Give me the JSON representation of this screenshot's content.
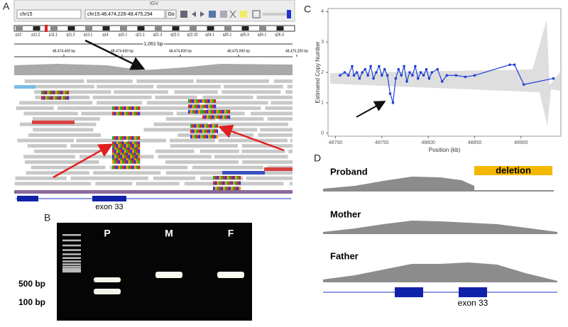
{
  "panels": {
    "A": {
      "label": "A",
      "igv": {
        "window_title": "IGV",
        "genome": "chr15",
        "locus": "chr15:48,474,226-48,475,294",
        "go": "Go",
        "bands": [
          "p12",
          "p11.2",
          "p11.1",
          "q11.2",
          "q13.1",
          "q14",
          "q15.1",
          "q21.1",
          "q21.3",
          "q22.2",
          "q22.32",
          "q24.1",
          "q25.1",
          "q25.3",
          "q26.1",
          "q26.3"
        ],
        "span": "1,061 bp",
        "positions": [
          "48,474,400 bp",
          "48,474,600 bp",
          "48,474,800 bp",
          "48,475,000 bp",
          "48,475,200 bp"
        ],
        "exon": "exon 33"
      }
    },
    "B": {
      "label": "B",
      "lanes": [
        "P",
        "M",
        "F"
      ],
      "ladder_labels": [
        "500 bp",
        "100 bp"
      ]
    },
    "D": {
      "label": "D",
      "tracks": [
        "Proband",
        "Mother",
        "Father"
      ],
      "deletion": "deletion",
      "exon": "exon 33"
    }
  },
  "chart_data": {
    "type": "line",
    "panel_label": "C",
    "x_label": "Position (kb)",
    "y_label": "Estimated Copy Number",
    "xlim": [
      48692,
      48943
    ],
    "xticks": [
      48700,
      48750,
      48800,
      48850,
      48900
    ],
    "ylim": [
      -0.1,
      4.1
    ],
    "yticks": [
      0,
      1,
      2,
      3,
      4
    ],
    "x": [
      48705,
      48710,
      48714,
      48718,
      48720,
      48723,
      48726,
      48729,
      48732,
      48735,
      48738,
      48741,
      48744,
      48747,
      48750,
      48753,
      48756,
      48759,
      48762,
      48765,
      48768,
      48771,
      48774,
      48777,
      48780,
      48783,
      48786,
      48789,
      48792,
      48795,
      48798,
      48801,
      48804,
      48810,
      48815,
      48820,
      48830,
      48840,
      48850,
      48888,
      48893,
      48903,
      48935
    ],
    "series": [
      {
        "color": "#1f3fd8",
        "values": [
          1.9,
          2.0,
          1.9,
          2.2,
          1.9,
          2.0,
          1.8,
          2.0,
          2.1,
          1.9,
          2.2,
          1.8,
          2.0,
          2.2,
          1.9,
          2.1,
          1.9,
          1.3,
          1.0,
          1.8,
          2.1,
          1.9,
          2.2,
          1.7,
          2.0,
          1.9,
          2.2,
          1.8,
          2.0,
          1.9,
          2.1,
          1.8,
          2.0,
          2.1,
          1.7,
          1.9,
          1.9,
          1.85,
          1.9,
          2.25,
          2.25,
          1.6,
          1.8
        ]
      }
    ]
  }
}
